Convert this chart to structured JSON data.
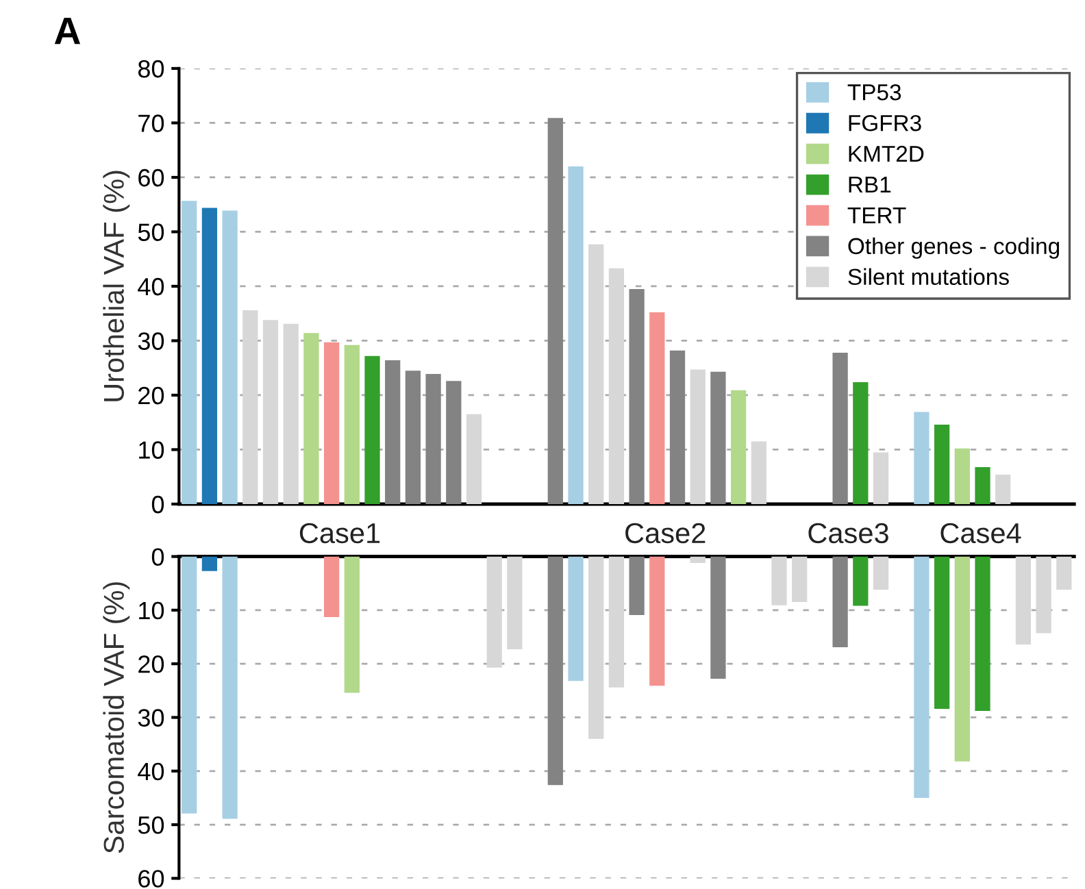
{
  "chart_data": [
    {
      "type": "bar",
      "title": "A",
      "ylabel": "Urothelial VAF (%)",
      "ylim": [
        0,
        80
      ],
      "yticks": [
        0,
        10,
        20,
        30,
        40,
        50,
        60,
        70,
        80
      ],
      "grid": "y",
      "legend": "top right",
      "tick_labels": "y",
      "categories": [
        null,
        null,
        null,
        null,
        null,
        null,
        null,
        null,
        null,
        null,
        null,
        null,
        null,
        null,
        null,
        null,
        null,
        null,
        null,
        null,
        null,
        null,
        null,
        null,
        null,
        null,
        null,
        null,
        null,
        null,
        null,
        null,
        null,
        null,
        null,
        null,
        null,
        null,
        null,
        null,
        null,
        null,
        null,
        null
      ],
      "series": [
        {
          "name": "TP53",
          "color": "#a6cfe4",
          "values": [
            55.7,
            null,
            53.9,
            null,
            null,
            null,
            null,
            null,
            null,
            null,
            null,
            null,
            null,
            null,
            null,
            null,
            null,
            null,
            null,
            62.0,
            null,
            null,
            null,
            null,
            null,
            null,
            null,
            null,
            null,
            null,
            null,
            null,
            null,
            null,
            null,
            null,
            16.9,
            null,
            null,
            null,
            null,
            null,
            null,
            null
          ]
        },
        {
          "name": "FGFR3",
          "color": "#1f78b4",
          "values": [
            null,
            54.4,
            null,
            null,
            null,
            null,
            null,
            null,
            null,
            null,
            null,
            null,
            null,
            null,
            null,
            null,
            null,
            null,
            null,
            null,
            null,
            null,
            null,
            null,
            null,
            null,
            null,
            null,
            null,
            null,
            null,
            null,
            null,
            null,
            null,
            null,
            null,
            null,
            null,
            null,
            null,
            null,
            null,
            null
          ]
        },
        {
          "name": "KMT2D",
          "color": "#b2d88a",
          "values": [
            null,
            null,
            null,
            null,
            null,
            null,
            31.4,
            null,
            29.2,
            null,
            null,
            null,
            null,
            null,
            null,
            null,
            null,
            null,
            null,
            null,
            null,
            null,
            null,
            null,
            null,
            null,
            null,
            20.9,
            null,
            null,
            null,
            null,
            null,
            null,
            null,
            null,
            null,
            null,
            10.2,
            null,
            null,
            null,
            null,
            null
          ]
        },
        {
          "name": "RB1",
          "color": "#33a02c",
          "values": [
            null,
            null,
            null,
            null,
            null,
            null,
            null,
            null,
            null,
            27.2,
            null,
            null,
            null,
            null,
            null,
            null,
            null,
            null,
            null,
            null,
            null,
            null,
            null,
            null,
            null,
            null,
            null,
            null,
            null,
            null,
            null,
            null,
            null,
            22.4,
            null,
            null,
            null,
            14.6,
            null,
            6.8,
            null,
            null,
            null,
            null
          ]
        },
        {
          "name": "TERT",
          "color": "#f4928f",
          "values": [
            null,
            null,
            null,
            null,
            null,
            null,
            null,
            29.7,
            null,
            null,
            null,
            null,
            null,
            null,
            null,
            null,
            null,
            null,
            null,
            null,
            null,
            null,
            null,
            35.2,
            null,
            null,
            null,
            null,
            null,
            null,
            null,
            null,
            null,
            null,
            null,
            null,
            null,
            null,
            null,
            null,
            null,
            null,
            null,
            null
          ]
        },
        {
          "name": "Other genes - coding",
          "color": "#838383",
          "values": [
            null,
            null,
            null,
            null,
            null,
            null,
            null,
            null,
            null,
            null,
            26.4,
            24.5,
            23.9,
            22.6,
            null,
            null,
            null,
            null,
            70.9,
            null,
            null,
            null,
            39.5,
            null,
            28.2,
            null,
            24.3,
            null,
            null,
            null,
            null,
            null,
            27.8,
            null,
            null,
            null,
            null,
            null,
            null,
            null,
            null,
            null,
            null,
            null
          ]
        },
        {
          "name": "Silent mutations",
          "color": "#d7d7d7",
          "values": [
            null,
            null,
            null,
            35.6,
            33.8,
            33.1,
            null,
            null,
            null,
            null,
            null,
            null,
            null,
            null,
            16.5,
            null,
            null,
            null,
            null,
            null,
            47.7,
            43.3,
            null,
            null,
            null,
            24.7,
            null,
            null,
            11.5,
            null,
            null,
            null,
            null,
            null,
            9.5,
            null,
            null,
            null,
            null,
            null,
            5.4,
            null,
            null,
            null
          ]
        }
      ]
    },
    {
      "type": "bar",
      "ylabel": "Sarcomatoid VAF (%)",
      "ylim": [
        60,
        0
      ],
      "yticks": [
        0,
        10,
        20,
        30,
        40,
        50,
        60
      ],
      "grid": "y",
      "tick_labels": "y",
      "annotations": [
        "Case1",
        "Case2",
        "Case3",
        "Case4"
      ],
      "categories": [
        null,
        null,
        null,
        null,
        null,
        null,
        null,
        null,
        null,
        null,
        null,
        null,
        null,
        null,
        null,
        null,
        null,
        null,
        null,
        null,
        null,
        null,
        null,
        null,
        null,
        null,
        null,
        null,
        null,
        null,
        null,
        null,
        null,
        null,
        null,
        null,
        null,
        null,
        null,
        null,
        null,
        null,
        null,
        null
      ],
      "series": [
        {
          "color": "#a6cfe4",
          "values": [
            47.9,
            null,
            48.9,
            null,
            null,
            null,
            null,
            null,
            null,
            null,
            null,
            null,
            null,
            null,
            null,
            null,
            null,
            null,
            null,
            23.2,
            null,
            null,
            null,
            null,
            null,
            null,
            null,
            null,
            null,
            null,
            null,
            null,
            null,
            null,
            null,
            null,
            45.0,
            null,
            null,
            null,
            null,
            null,
            null,
            null
          ]
        },
        {
          "color": "#1f78b4",
          "values": [
            null,
            2.7,
            null,
            null,
            null,
            null,
            null,
            null,
            null,
            null,
            null,
            null,
            null,
            null,
            null,
            null,
            null,
            null,
            null,
            null,
            null,
            null,
            null,
            null,
            null,
            null,
            null,
            null,
            null,
            null,
            null,
            null,
            null,
            null,
            null,
            null,
            null,
            null,
            null,
            null,
            null,
            null,
            null,
            null
          ]
        },
        {
          "color": "#b2d88a",
          "values": [
            null,
            null,
            null,
            null,
            null,
            null,
            null,
            null,
            25.4,
            null,
            null,
            null,
            null,
            null,
            null,
            null,
            null,
            null,
            null,
            null,
            null,
            null,
            null,
            null,
            null,
            null,
            null,
            null,
            null,
            null,
            null,
            null,
            null,
            null,
            null,
            null,
            null,
            null,
            38.2,
            null,
            null,
            null,
            null,
            null
          ]
        },
        {
          "color": "#33a02c",
          "values": [
            null,
            null,
            null,
            null,
            null,
            null,
            null,
            null,
            null,
            null,
            null,
            null,
            null,
            null,
            null,
            null,
            null,
            null,
            null,
            null,
            null,
            null,
            null,
            null,
            null,
            null,
            null,
            null,
            null,
            null,
            null,
            null,
            null,
            9.2,
            null,
            null,
            null,
            28.4,
            null,
            28.8,
            null,
            null,
            null,
            null
          ]
        },
        {
          "color": "#f4928f",
          "values": [
            null,
            null,
            null,
            null,
            null,
            null,
            null,
            11.3,
            null,
            null,
            null,
            null,
            null,
            null,
            null,
            null,
            null,
            null,
            null,
            null,
            null,
            null,
            null,
            24.1,
            null,
            null,
            null,
            null,
            null,
            null,
            null,
            null,
            null,
            null,
            null,
            null,
            null,
            null,
            null,
            null,
            null,
            null,
            null,
            null
          ]
        },
        {
          "color": "#838383",
          "values": [
            null,
            null,
            null,
            null,
            null,
            null,
            null,
            null,
            null,
            null,
            null,
            null,
            null,
            null,
            null,
            null,
            null,
            null,
            42.6,
            null,
            null,
            null,
            10.9,
            null,
            null,
            null,
            22.8,
            null,
            null,
            null,
            null,
            null,
            16.9,
            null,
            null,
            null,
            null,
            null,
            null,
            null,
            null,
            null,
            null,
            null
          ]
        },
        {
          "color": "#d7d7d7",
          "values": [
            null,
            null,
            null,
            null,
            null,
            null,
            null,
            null,
            null,
            null,
            null,
            null,
            null,
            null,
            null,
            20.7,
            17.3,
            null,
            null,
            null,
            34.0,
            24.4,
            null,
            null,
            null,
            1.2,
            null,
            null,
            null,
            9.1,
            8.5,
            null,
            null,
            null,
            6.2,
            null,
            null,
            null,
            null,
            null,
            null,
            16.4,
            14.3,
            6.2
          ]
        }
      ]
    }
  ]
}
